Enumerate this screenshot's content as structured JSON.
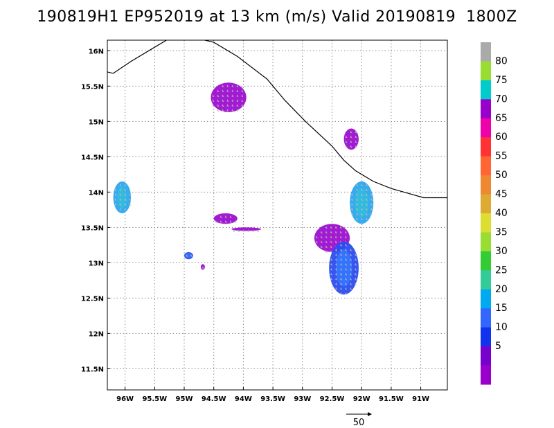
{
  "chart_data": {
    "type": "wind_speed_map",
    "title": "190819H1 EP952019 at 13 km (m/s) Valid 20190819  1800Z",
    "x_range": [
      96.3,
      90.55
    ],
    "y_range": [
      11.2,
      16.15
    ],
    "x_ticks": [
      {
        "value": 96.0,
        "label": "96W"
      },
      {
        "value": 95.5,
        "label": "95.5W"
      },
      {
        "value": 95.0,
        "label": "95W"
      },
      {
        "value": 94.5,
        "label": "94.5W"
      },
      {
        "value": 94.0,
        "label": "94W"
      },
      {
        "value": 93.5,
        "label": "93.5W"
      },
      {
        "value": 93.0,
        "label": "93W"
      },
      {
        "value": 92.5,
        "label": "92.5W"
      },
      {
        "value": 92.0,
        "label": "92W"
      },
      {
        "value": 91.5,
        "label": "91.5W"
      },
      {
        "value": 91.0,
        "label": "91W"
      }
    ],
    "y_ticks": [
      {
        "value": 16.0,
        "label": "16N"
      },
      {
        "value": 15.5,
        "label": "15.5N"
      },
      {
        "value": 15.0,
        "label": "15N"
      },
      {
        "value": 14.5,
        "label": "14.5N"
      },
      {
        "value": 14.0,
        "label": "14N"
      },
      {
        "value": 13.5,
        "label": "13.5N"
      },
      {
        "value": 13.0,
        "label": "13N"
      },
      {
        "value": 12.5,
        "label": "12.5N"
      },
      {
        "value": 12.0,
        "label": "12N"
      },
      {
        "value": 11.5,
        "label": "11.5N"
      }
    ],
    "grid": true,
    "coastline": [
      [
        96.3,
        15.7
      ],
      [
        96.2,
        15.68
      ],
      [
        95.9,
        15.85
      ],
      [
        95.5,
        16.05
      ],
      [
        95.2,
        16.2
      ],
      [
        94.9,
        16.2
      ],
      [
        94.5,
        16.12
      ],
      [
        94.1,
        15.92
      ],
      [
        93.6,
        15.6
      ],
      [
        93.3,
        15.3
      ],
      [
        92.95,
        15.0
      ],
      [
        92.5,
        14.65
      ],
      [
        92.3,
        14.45
      ],
      [
        92.1,
        14.3
      ],
      [
        91.8,
        14.15
      ],
      [
        91.5,
        14.05
      ],
      [
        91.2,
        13.98
      ],
      [
        90.95,
        13.92
      ],
      [
        90.55,
        13.92
      ]
    ],
    "wind_regions": [
      {
        "lon_min": 94.55,
        "lon_max": 93.95,
        "lat_min": 15.13,
        "lat_max": 15.55,
        "speed": 5
      },
      {
        "lon_min": 92.3,
        "lon_max": 92.05,
        "lat_min": 14.6,
        "lat_max": 14.9,
        "speed": 5
      },
      {
        "lon_min": 92.2,
        "lon_max": 91.8,
        "lat_min": 13.55,
        "lat_max": 14.15,
        "speed": 15
      },
      {
        "lon_min": 96.2,
        "lon_max": 95.9,
        "lat_min": 13.7,
        "lat_max": 14.15,
        "speed": 15
      },
      {
        "lon_min": 94.5,
        "lon_max": 94.1,
        "lat_min": 13.55,
        "lat_max": 13.7,
        "speed": 5
      },
      {
        "lon_min": 94.2,
        "lon_max": 93.7,
        "lat_min": 13.45,
        "lat_max": 13.5,
        "speed": 5
      },
      {
        "lon_min": 92.8,
        "lon_max": 92.2,
        "lat_min": 13.15,
        "lat_max": 13.55,
        "speed": 5
      },
      {
        "lon_min": 92.55,
        "lon_max": 92.05,
        "lat_min": 12.55,
        "lat_max": 13.3,
        "speed": 10
      },
      {
        "lon_min": 95.0,
        "lon_max": 94.85,
        "lat_min": 13.05,
        "lat_max": 13.15,
        "speed": 10
      },
      {
        "lon_min": 94.72,
        "lon_max": 94.65,
        "lat_min": 12.9,
        "lat_max": 12.98,
        "speed": 5
      }
    ],
    "colorbar": {
      "labels": [
        "80",
        "75",
        "70",
        "65",
        "60",
        "55",
        "50",
        "45",
        "40",
        "35",
        "30",
        "25",
        "20",
        "15",
        "10",
        "5"
      ],
      "colors": [
        "#aaaaaa",
        "#99dd33",
        "#00cccc",
        "#9900cc",
        "#ee00aa",
        "#ff3333",
        "#ff6633",
        "#ee8833",
        "#ddaa33",
        "#dddd33",
        "#99dd33",
        "#33cc33",
        "#33cc99",
        "#00aaee",
        "#3366ff",
        "#1133ee",
        "#7700cc",
        "#9900cc"
      ]
    },
    "reference_vector": {
      "label": "50"
    }
  }
}
